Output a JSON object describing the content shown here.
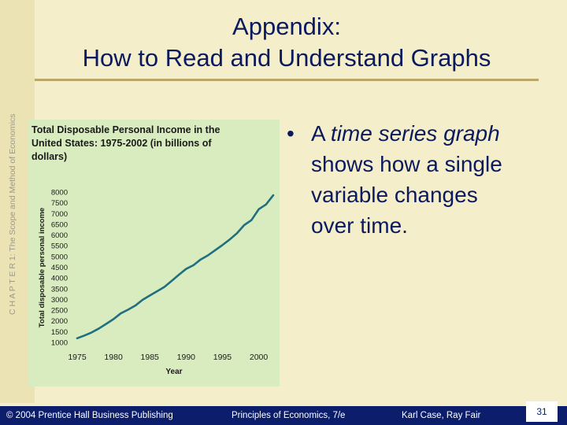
{
  "sidebar": {
    "text": "C H A P T E R   1:  The Scope and Method of Economics"
  },
  "slide": {
    "title_line1": "Appendix:",
    "title_line2": "How to Read and Understand Graphs"
  },
  "bullet": {
    "prefix": "A ",
    "emphasis": "time series graph",
    "suffix": " shows how a single variable changes over time."
  },
  "footer": {
    "copyright": "© 2004 Prentice Hall Business Publishing",
    "book": "Principles of Economics, 7/e",
    "authors": "Karl Case, Ray Fair",
    "page": "31"
  },
  "colors": {
    "background": "#f4eecb",
    "title": "#0b1a5e",
    "chart_panel": "#d9ecbf",
    "line": "#1f6f80",
    "footer": "#0b1d6b"
  },
  "chart_data": {
    "type": "line",
    "title": "Total Disposable Personal Income in the United States: 1975-2002 (in billions of dollars)",
    "xlabel": "Year",
    "ylabel": "Total disposable personal income",
    "xlim": [
      1975,
      2002
    ],
    "ylim": [
      1000,
      8000
    ],
    "xticks": [
      1975,
      1980,
      1985,
      1990,
      1995,
      2000
    ],
    "yticks": [
      1000,
      1500,
      2000,
      2500,
      3000,
      3500,
      4000,
      4500,
      5000,
      5500,
      6000,
      6500,
      7000,
      7500,
      8000
    ],
    "grid": false,
    "x": [
      1975,
      1976,
      1977,
      1978,
      1979,
      1980,
      1981,
      1982,
      1983,
      1984,
      1985,
      1986,
      1987,
      1988,
      1989,
      1990,
      1991,
      1992,
      1993,
      1994,
      1995,
      1996,
      1997,
      1998,
      1999,
      2000,
      2001,
      2002
    ],
    "values": [
      1190,
      1320,
      1460,
      1650,
      1860,
      2080,
      2350,
      2520,
      2710,
      2980,
      3180,
      3380,
      3580,
      3860,
      4150,
      4420,
      4590,
      4860,
      5050,
      5290,
      5530,
      5790,
      6080,
      6460,
      6690,
      7200,
      7420,
      7850
    ]
  }
}
